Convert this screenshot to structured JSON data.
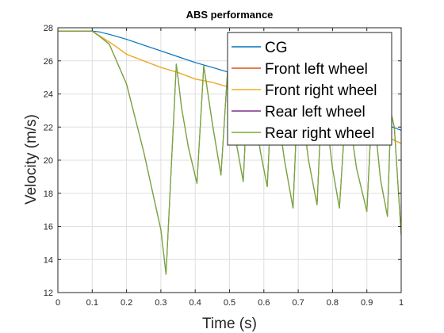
{
  "colors": {
    "background": "#ffffff",
    "grid": "#dfdfdf",
    "axis": "#262626",
    "cg": "#0072bd",
    "front_left": "#d95319",
    "front_right": "#edb120",
    "rear_left": "#7e2f8e",
    "rear_right": "#77ac30"
  },
  "chart_data": {
    "type": "line",
    "title": "ABS performance",
    "xlabel": "Time (s)",
    "ylabel": "Velocity (m/s)",
    "xlim": [
      0,
      1
    ],
    "ylim": [
      12,
      28
    ],
    "xticks": [
      0,
      0.1,
      0.2,
      0.3,
      0.4,
      0.5,
      0.6,
      0.7,
      0.8,
      0.9,
      1
    ],
    "xtick_labels": [
      "0",
      "0.1",
      "0.2",
      "0.3",
      "0.4",
      "0.5",
      "0.6",
      "0.7",
      "0.8",
      "0.9",
      "1"
    ],
    "yticks": [
      12,
      14,
      16,
      18,
      20,
      22,
      24,
      26,
      28
    ],
    "ytick_labels": [
      "12",
      "14",
      "16",
      "18",
      "20",
      "22",
      "24",
      "26",
      "28"
    ],
    "grid": true,
    "legend_position": "top-right",
    "series": [
      {
        "name": "CG",
        "color": "#0072bd",
        "x": [
          0,
          0.1,
          0.12,
          0.15,
          0.2,
          0.25,
          0.3,
          0.35,
          0.4,
          0.45,
          0.5,
          0.55,
          0.6,
          0.65,
          0.7,
          0.75,
          0.8,
          0.85,
          0.9,
          0.95,
          1.0
        ],
        "y": [
          27.8,
          27.8,
          27.75,
          27.6,
          27.3,
          26.95,
          26.6,
          26.25,
          25.9,
          25.6,
          25.3,
          25.0,
          24.7,
          24.4,
          24.05,
          23.7,
          23.35,
          23.0,
          22.6,
          22.2,
          21.8
        ]
      },
      {
        "name": "Front left wheel",
        "color": "#d95319",
        "x": [
          0,
          0.1,
          0.13,
          0.16,
          0.2,
          0.25,
          0.3,
          0.35,
          0.4,
          0.45,
          0.5,
          0.55,
          0.6,
          0.65,
          0.7,
          0.75,
          0.8,
          0.85,
          0.9,
          0.95,
          1.0
        ],
        "y": [
          27.8,
          27.8,
          27.4,
          27.0,
          26.4,
          26.0,
          25.6,
          25.3,
          24.9,
          24.7,
          24.4,
          24.1,
          23.8,
          23.5,
          23.2,
          22.9,
          22.5,
          22.2,
          21.8,
          21.5,
          21.0
        ]
      },
      {
        "name": "Front right wheel",
        "color": "#edb120",
        "x": [
          0,
          0.1,
          0.13,
          0.16,
          0.2,
          0.25,
          0.3,
          0.35,
          0.4,
          0.45,
          0.5,
          0.55,
          0.6,
          0.65,
          0.7,
          0.75,
          0.8,
          0.85,
          0.9,
          0.95,
          1.0
        ],
        "y": [
          27.8,
          27.8,
          27.4,
          27.0,
          26.4,
          26.0,
          25.6,
          25.3,
          24.9,
          24.7,
          24.4,
          24.1,
          23.8,
          23.5,
          23.2,
          22.9,
          22.5,
          22.2,
          21.8,
          21.5,
          21.0
        ]
      },
      {
        "name": "Rear left wheel",
        "color": "#7e2f8e",
        "x": [
          0,
          0.1,
          0.12,
          0.15,
          0.2,
          0.25,
          0.3,
          0.315,
          0.345,
          0.35,
          0.36,
          0.38,
          0.405,
          0.425,
          0.43,
          0.45,
          0.475,
          0.495,
          0.5,
          0.52,
          0.54,
          0.555,
          0.56,
          0.59,
          0.61,
          0.625,
          0.63,
          0.66,
          0.685,
          0.7,
          0.705,
          0.73,
          0.755,
          0.77,
          0.775,
          0.8,
          0.82,
          0.84,
          0.845,
          0.87,
          0.9,
          0.915,
          0.92,
          0.94,
          0.96,
          0.97,
          0.98,
          1.0
        ],
        "y": [
          27.8,
          27.8,
          27.5,
          27.0,
          24.6,
          20.5,
          15.8,
          13.1,
          25.8,
          25.0,
          23.2,
          20.8,
          18.6,
          25.7,
          25.0,
          22.2,
          19.1,
          25.6,
          24.8,
          21.0,
          18.7,
          25.3,
          24.7,
          20.5,
          18.4,
          25.0,
          24.4,
          20.0,
          17.1,
          24.6,
          24.1,
          20.0,
          17.3,
          24.3,
          23.8,
          19.5,
          17.1,
          23.6,
          23.2,
          19.5,
          16.9,
          23.3,
          22.9,
          18.8,
          16.6,
          22.9,
          22.0,
          15.5
        ]
      },
      {
        "name": "Rear right wheel",
        "color": "#77ac30",
        "x": [
          0,
          0.1,
          0.12,
          0.15,
          0.2,
          0.25,
          0.3,
          0.315,
          0.345,
          0.35,
          0.36,
          0.38,
          0.405,
          0.425,
          0.43,
          0.45,
          0.475,
          0.495,
          0.5,
          0.52,
          0.54,
          0.555,
          0.56,
          0.59,
          0.61,
          0.625,
          0.63,
          0.66,
          0.685,
          0.7,
          0.705,
          0.73,
          0.755,
          0.77,
          0.775,
          0.8,
          0.82,
          0.84,
          0.845,
          0.87,
          0.9,
          0.915,
          0.92,
          0.94,
          0.96,
          0.97,
          0.98,
          1.0
        ],
        "y": [
          27.8,
          27.8,
          27.5,
          27.0,
          24.6,
          20.5,
          15.8,
          13.1,
          25.8,
          25.0,
          23.2,
          20.8,
          18.6,
          25.7,
          25.0,
          22.2,
          19.1,
          25.6,
          24.8,
          21.0,
          18.7,
          25.3,
          24.7,
          20.5,
          18.4,
          25.0,
          24.4,
          20.0,
          17.1,
          24.6,
          24.1,
          20.0,
          17.3,
          24.3,
          23.8,
          19.5,
          17.1,
          23.6,
          23.2,
          19.5,
          16.9,
          23.3,
          22.9,
          18.8,
          16.6,
          22.9,
          22.0,
          15.5
        ]
      }
    ]
  }
}
